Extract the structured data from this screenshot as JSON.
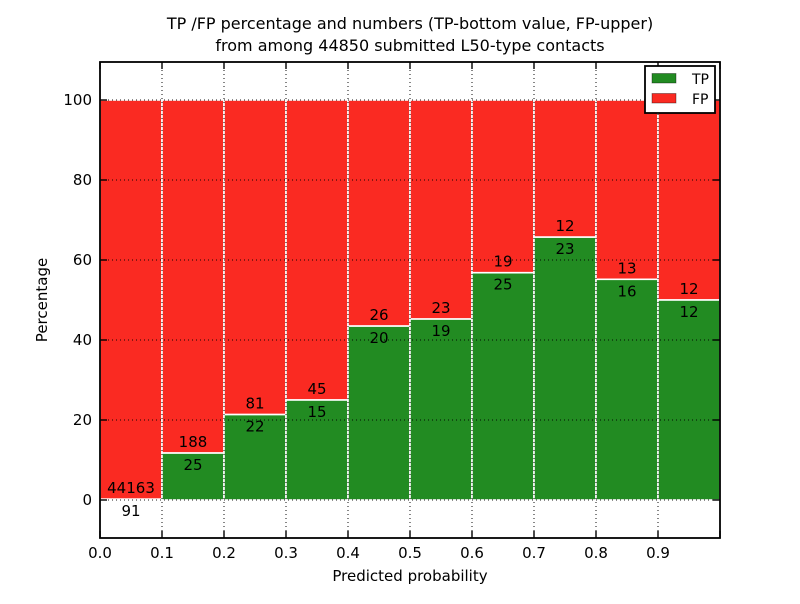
{
  "figure": {
    "title_line1": "TP /FP percentage and numbers (TP-bottom value, FP-upper)",
    "title_line2": "from among 44850 submitted L50-type contacts"
  },
  "axes": {
    "xlabel": "Predicted probability",
    "ylabel": "Percentage",
    "x_tick_labels": [
      "0.0",
      "0.1",
      "0.2",
      "0.3",
      "0.4",
      "0.5",
      "0.6",
      "0.7",
      "0.8",
      "0.9"
    ],
    "y_tick_labels": [
      "0",
      "20",
      "40",
      "60",
      "80",
      "100"
    ],
    "grid_style": "dotted",
    "grid_color": "#000000"
  },
  "legend": {
    "position": "upper-right",
    "items": [
      {
        "label": "TP",
        "color": "#228b22"
      },
      {
        "label": "FP",
        "color": "#fa2a22"
      }
    ]
  },
  "chart_data": {
    "type": "bar",
    "mode": "stacked-100-percent",
    "title": "TP /FP percentage and numbers (TP-bottom value, FP-upper) from among 44850 submitted L50-type contacts",
    "xlabel": "Predicted probability",
    "ylabel": "Percentage",
    "total_contacts": 44850,
    "bin_starts": [
      0.0,
      0.1,
      0.2,
      0.3,
      0.4,
      0.5,
      0.6,
      0.7,
      0.8,
      0.9
    ],
    "bin_width": 0.1,
    "series": [
      {
        "name": "TP",
        "color": "#228b22",
        "counts": [
          91,
          25,
          22,
          15,
          20,
          19,
          25,
          23,
          16,
          12
        ]
      },
      {
        "name": "FP",
        "color": "#fa2a22",
        "counts": [
          44163,
          188,
          81,
          45,
          26,
          23,
          19,
          12,
          13,
          12
        ]
      }
    ],
    "tp_percent_approx": [
      0.21,
      11.74,
      21.36,
      25.0,
      43.48,
      45.24,
      56.82,
      65.71,
      55.17,
      50.0
    ],
    "xlim": [
      0.0,
      1.0
    ],
    "ylim_display": [
      -9.5,
      109.5
    ],
    "y_ticks": [
      0,
      20,
      40,
      60,
      80,
      100
    ],
    "legend_position": "upper-right",
    "grid": true
  }
}
